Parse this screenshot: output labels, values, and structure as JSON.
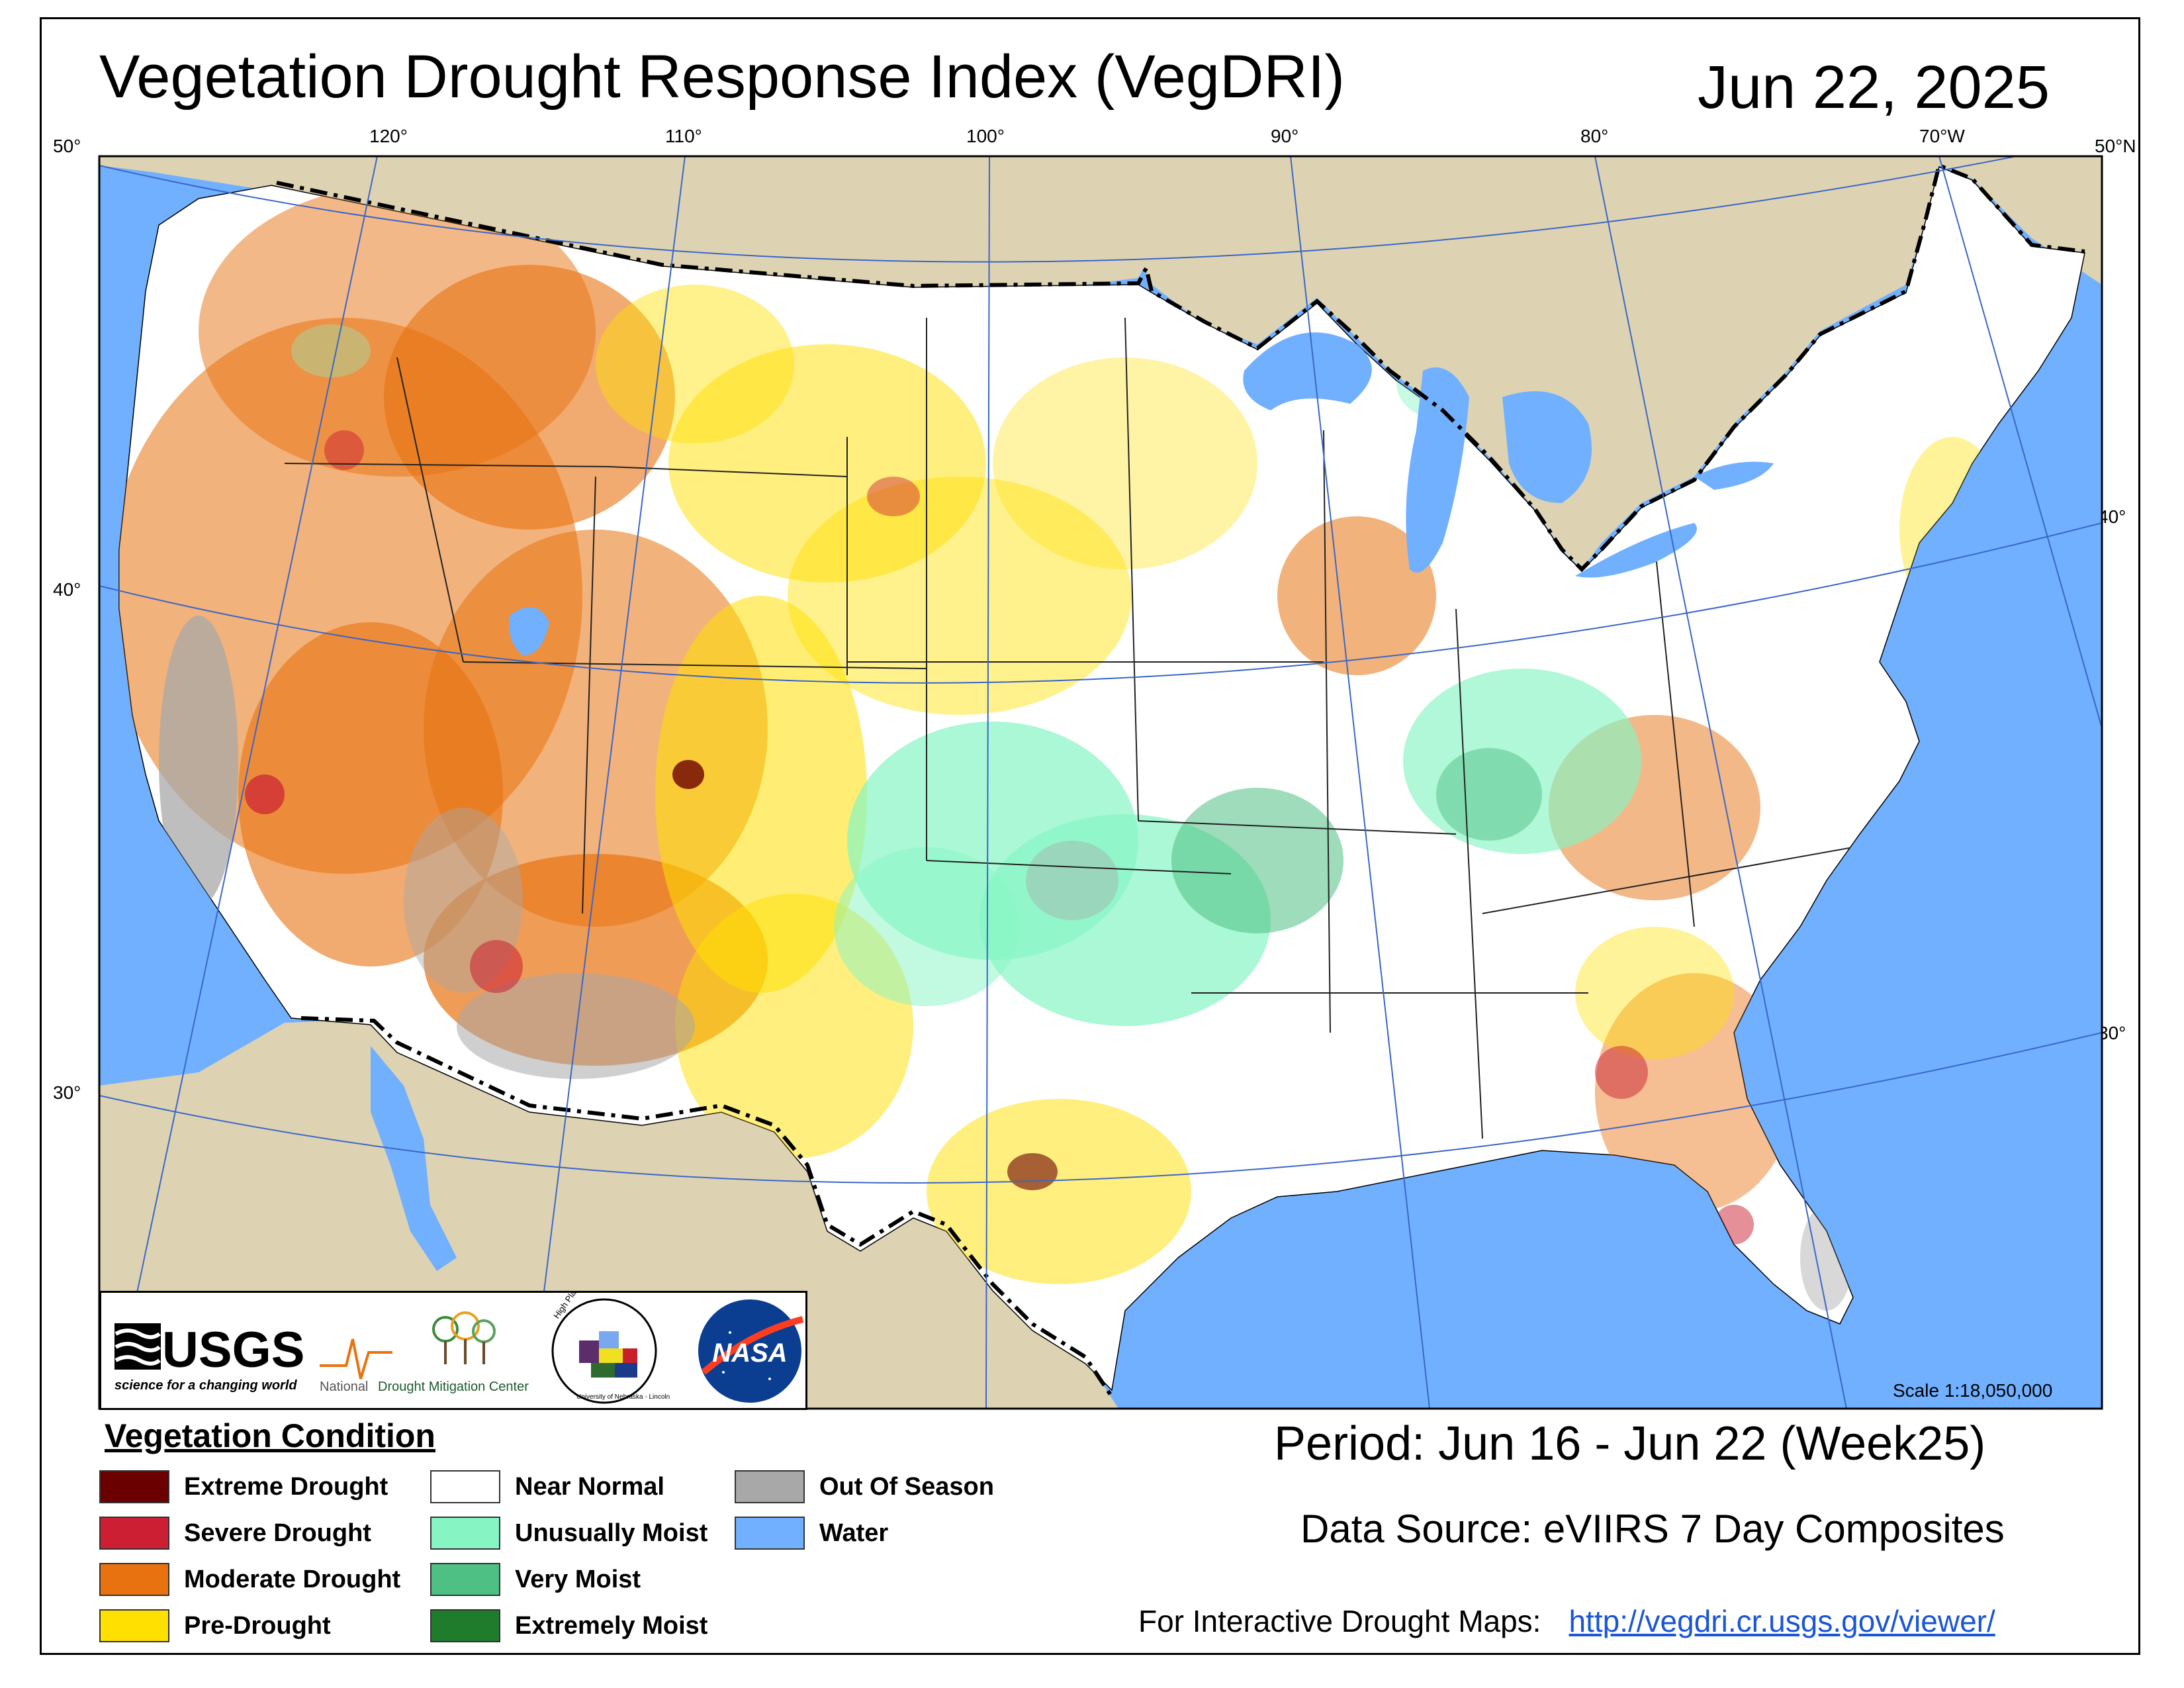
{
  "header": {
    "title": "Vegetation Drought Response Index (VegDRI)",
    "date": "Jun 22, 2025"
  },
  "graticule": {
    "top": [
      "120°",
      "110°",
      "100°",
      "90°",
      "80°",
      "70°W"
    ],
    "left": [
      "50°",
      "40°",
      "30°"
    ],
    "right": [
      "50°N",
      "40°",
      "30°"
    ]
  },
  "logos": {
    "usgs_text": "USGS",
    "usgs_tagline": "science for a changing world",
    "ndmc_text_national": "National",
    "ndmc_text_rest": "Drought Mitigation Center",
    "hprcc_text": "High Plains Regional Climate Center",
    "hprcc_sub": "University of Nebraska - Lincoln",
    "nasa_text": "NASA"
  },
  "scale": "Scale 1:18,050,000",
  "legend": {
    "title": "Vegetation Condition",
    "items": [
      {
        "label": "Extreme Drought",
        "color": "#6b0000"
      },
      {
        "label": "Severe Drought",
        "color": "#cc1f33"
      },
      {
        "label": "Moderate Drought",
        "color": "#e8720f"
      },
      {
        "label": "Pre-Drought",
        "color": "#ffe000"
      },
      {
        "label": "Near Normal",
        "color": "#ffffff"
      },
      {
        "label": "Unusually Moist",
        "color": "#86f5c3"
      },
      {
        "label": "Very Moist",
        "color": "#4fc084"
      },
      {
        "label": "Extremely Moist",
        "color": "#1f7c2c"
      },
      {
        "label": "Out Of Season",
        "color": "#a8a8a8"
      },
      {
        "label": "Water",
        "color": "#70b0ff"
      }
    ]
  },
  "period": "Period:  Jun 16 - Jun 22 (Week25)",
  "data_source": "Data Source:  eVIIRS 7 Day Composites",
  "interactive": {
    "label": "For Interactive Drought Maps:",
    "url": "http://vegdri.cr.usgs.gov/viewer/"
  }
}
